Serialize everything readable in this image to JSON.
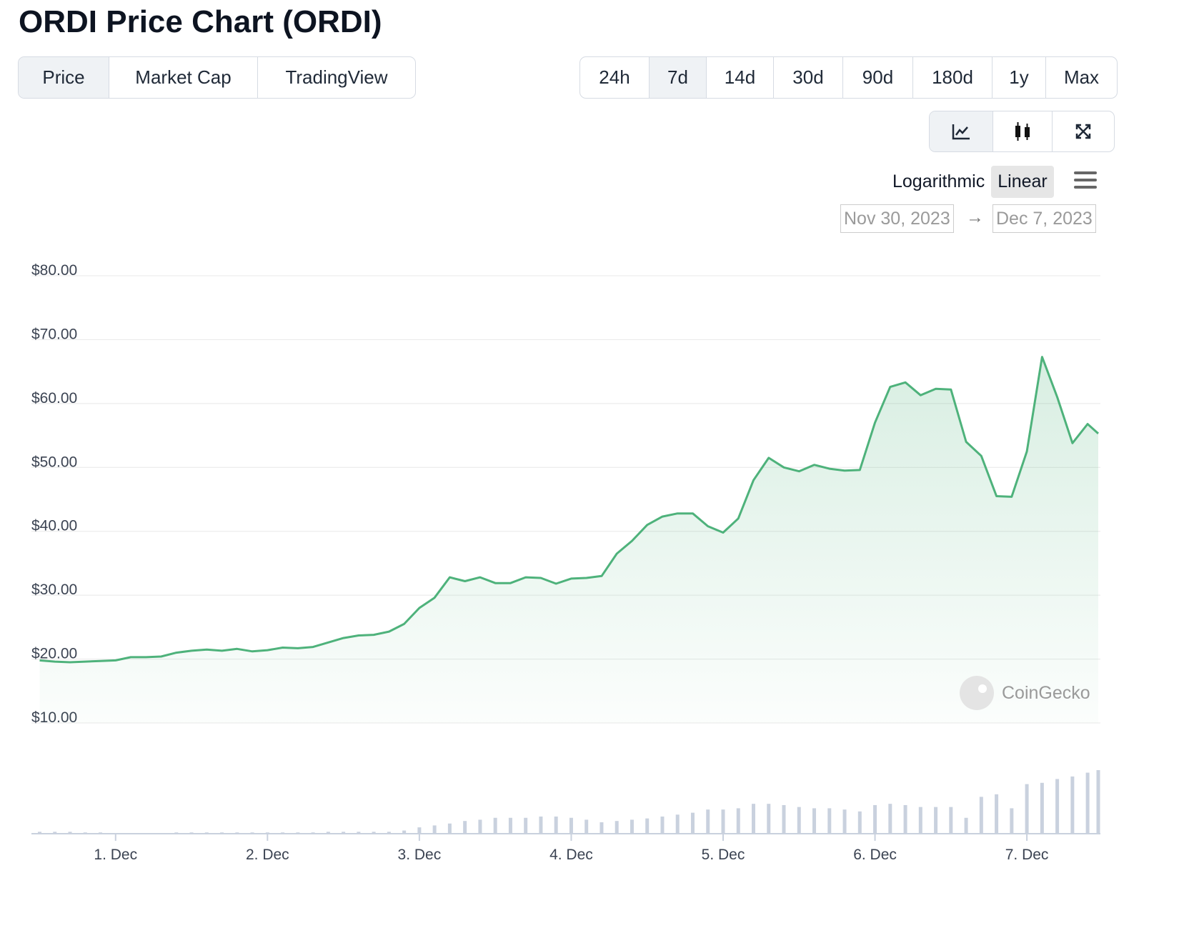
{
  "title": "ORDI Price Chart (ORDI)",
  "tabs": [
    "Price",
    "Market Cap",
    "TradingView"
  ],
  "active_tab": 0,
  "ranges": [
    "24h",
    "7d",
    "14d",
    "30d",
    "90d",
    "180d",
    "1y",
    "Max"
  ],
  "active_range": 1,
  "scale_options": [
    "Logarithmic",
    "Linear"
  ],
  "active_scale": 1,
  "date_from": "Nov 30, 2023",
  "date_separator": "→",
  "date_to": "Dec 7, 2023",
  "watermark": "CoinGecko",
  "chart_data": {
    "type": "line",
    "x": [
      0.5,
      0.6,
      0.7,
      0.8,
      0.9,
      1.0,
      1.1,
      1.2,
      1.3,
      1.4,
      1.5,
      1.6,
      1.7,
      1.8,
      1.9,
      2.0,
      2.1,
      2.2,
      2.3,
      2.4,
      2.5,
      2.6,
      2.7,
      2.8,
      2.9,
      3.0,
      3.1,
      3.2,
      3.3,
      3.4,
      3.5,
      3.6,
      3.7,
      3.8,
      3.9,
      4.0,
      4.1,
      4.2,
      4.3,
      4.4,
      4.5,
      4.6,
      4.7,
      4.8,
      4.9,
      5.0,
      5.1,
      5.2,
      5.3,
      5.4,
      5.5,
      5.6,
      5.7,
      5.8,
      5.9,
      6.0,
      6.1,
      6.2,
      6.3,
      6.4,
      6.5,
      6.6,
      6.7,
      6.8,
      6.9,
      7.0,
      7.1,
      7.2,
      7.3,
      7.4,
      7.47
    ],
    "series": [
      {
        "name": "Price",
        "color": "#4eb27b",
        "values": [
          19.8,
          19.6,
          19.5,
          19.6,
          19.7,
          19.8,
          20.3,
          20.3,
          20.4,
          21.0,
          21.3,
          21.5,
          21.3,
          21.6,
          21.2,
          21.4,
          21.8,
          21.7,
          21.9,
          22.6,
          23.3,
          23.7,
          23.8,
          24.3,
          25.5,
          28.0,
          29.6,
          32.8,
          32.2,
          32.8,
          31.9,
          31.9,
          32.8,
          32.7,
          31.8,
          32.6,
          32.7,
          33.0,
          36.5,
          38.5,
          41.0,
          42.3,
          42.8,
          42.8,
          40.8,
          39.8,
          42.0,
          48.0,
          51.5,
          50.0,
          49.4,
          50.4,
          49.8,
          49.5,
          49.6,
          57.0,
          62.6,
          63.3,
          61.3,
          62.3,
          62.2,
          54.0,
          51.8,
          45.5,
          45.4,
          52.5,
          67.3,
          61.0,
          53.8,
          56.8,
          55.3
        ]
      }
    ],
    "volume": {
      "color": "#c9d1de",
      "ylim": [
        0,
        100
      ],
      "values": [
        3,
        3,
        3,
        2,
        2,
        1,
        1,
        1,
        1,
        2,
        2,
        2,
        2,
        2,
        2,
        2,
        2,
        2,
        2,
        3,
        3,
        3,
        3,
        3,
        5,
        10,
        13,
        16,
        20,
        22,
        25,
        25,
        25,
        27,
        27,
        25,
        22,
        18,
        20,
        22,
        24,
        27,
        30,
        33,
        38,
        38,
        40,
        47,
        47,
        45,
        42,
        40,
        40,
        38,
        35,
        45,
        47,
        45,
        42,
        42,
        42,
        25,
        58,
        62,
        40,
        78,
        80,
        86,
        90,
        96,
        100
      ]
    },
    "xlim": [
      0.46,
      7.47
    ],
    "xticks": [
      {
        "value": 1,
        "label": "1. Dec"
      },
      {
        "value": 2,
        "label": "2. Dec"
      },
      {
        "value": 3,
        "label": "3. Dec"
      },
      {
        "value": 4,
        "label": "4. Dec"
      },
      {
        "value": 5,
        "label": "5. Dec"
      },
      {
        "value": 6,
        "label": "6. Dec"
      },
      {
        "value": 7,
        "label": "7. Dec"
      }
    ],
    "ylim": [
      10,
      80
    ],
    "yticks": [
      {
        "value": 10,
        "label": "$10.00"
      },
      {
        "value": 20,
        "label": "$20.00"
      },
      {
        "value": 30,
        "label": "$30.00"
      },
      {
        "value": 40,
        "label": "$40.00"
      },
      {
        "value": 50,
        "label": "$50.00"
      },
      {
        "value": 60,
        "label": "$60.00"
      },
      {
        "value": 70,
        "label": "$70.00"
      },
      {
        "value": 80,
        "label": "$80.00"
      }
    ],
    "grid": true
  }
}
